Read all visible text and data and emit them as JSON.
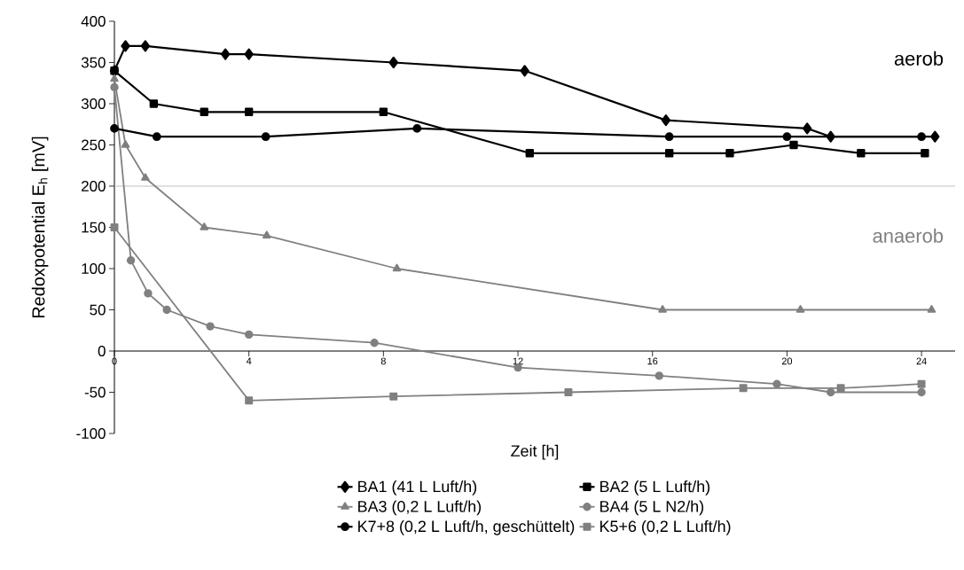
{
  "chart_data": {
    "type": "line",
    "xlabel": "Zeit [h]",
    "ylabel": "Redoxpotential E$_{h}$ [mV]",
    "xlim": [
      0,
      25
    ],
    "xticks": [
      0,
      4,
      8,
      12,
      16,
      20,
      24
    ],
    "ylim": [
      -100,
      400
    ],
    "yticks": [
      -100,
      -50,
      0,
      50,
      100,
      150,
      200,
      250,
      300,
      350,
      400
    ],
    "grid": false,
    "legend": "bottom",
    "line_style": "solid",
    "ref_lines": [
      {
        "axis": "y",
        "value": 200,
        "color": "#c0c0c0"
      }
    ],
    "annotations": [
      "aerob",
      "anaerob"
    ],
    "series": [
      {
        "name": "BA1 (41 L Luft/h)",
        "color": "#000000",
        "marker": "diamond",
        "x": [
          0,
          0.33,
          0.92,
          3.3,
          4.0,
          8.3,
          12.2,
          16.4,
          20.6,
          21.3,
          24.4
        ],
        "values": [
          340,
          370,
          370,
          360,
          360,
          350,
          340,
          280,
          270,
          260,
          260
        ]
      },
      {
        "name": "BA2 (5 L Luft/h)",
        "color": "#000000",
        "marker": "square",
        "x": [
          0,
          1.17,
          2.67,
          4.0,
          8.0,
          12.35,
          16.5,
          18.3,
          20.2,
          22.2,
          24.1
        ],
        "values": [
          340,
          300,
          290,
          290,
          290,
          240,
          240,
          240,
          250,
          240,
          240
        ]
      },
      {
        "name": "BA3 (0,2 L Luft/h)",
        "color": "#808080",
        "marker": "triangle",
        "x": [
          0,
          0.33,
          0.92,
          2.67,
          4.53,
          8.4,
          16.3,
          20.4,
          24.3
        ],
        "values": [
          330,
          250,
          210,
          150,
          140,
          100,
          50,
          50,
          50
        ]
      },
      {
        "name": "BA4 (5 L N2/h)",
        "color": "#808080",
        "marker": "circle",
        "x": [
          0,
          0.49,
          1.0,
          1.56,
          2.85,
          4.0,
          7.73,
          12.0,
          16.2,
          19.7,
          21.3,
          24.0
        ],
        "values": [
          320,
          110,
          70,
          50,
          30,
          20,
          10,
          -20,
          -30,
          -40,
          -50,
          -50
        ]
      },
      {
        "name": "K7+8 (0,2 L Luft/h, geschüttelt)",
        "color": "#000000",
        "marker": "circle",
        "x": [
          0,
          1.26,
          4.5,
          9.0,
          16.5,
          20.0,
          24.0
        ],
        "values": [
          270,
          260,
          260,
          270,
          260,
          260,
          260
        ]
      },
      {
        "name": "K5+6 (0,2 L Luft/h)",
        "color": "#808080",
        "marker": "square",
        "x": [
          0,
          4.0,
          8.3,
          13.5,
          18.7,
          21.6,
          24.0
        ],
        "values": [
          150,
          -60,
          -55,
          -50,
          -45,
          -45,
          -40
        ]
      }
    ]
  }
}
